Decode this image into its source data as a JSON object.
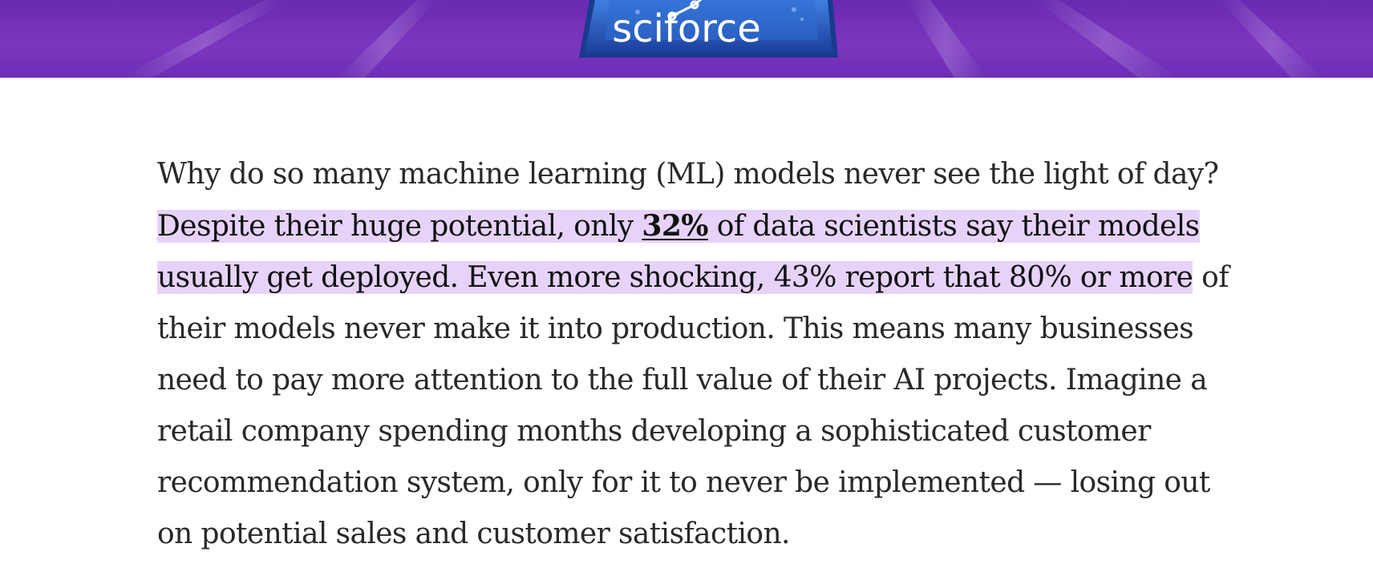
{
  "header": {
    "logo_text": "sciforce"
  },
  "article": {
    "intro": "Why do so many machine learning (ML) models never see the light of day?",
    "highlight_before_link": "Despite their huge potential, only ",
    "stat_link": "32%",
    "highlight_after_link": " of data scientists say their models usually get deployed. Even more shocking, 43% report that 80% or more",
    "rest": " of their models never make it into production. This means many businesses need to pay more attention to the full value of their AI projects. Imagine a retail company spending months developing a sophisticated customer recommendation system, only for it to never be implemented — losing out on potential sales and customer satisfaction."
  },
  "colors": {
    "banner_purple": "#7b36bf",
    "highlight": "#e7d3fa",
    "text": "#292929",
    "logo_blue": "#2a5fc4"
  }
}
